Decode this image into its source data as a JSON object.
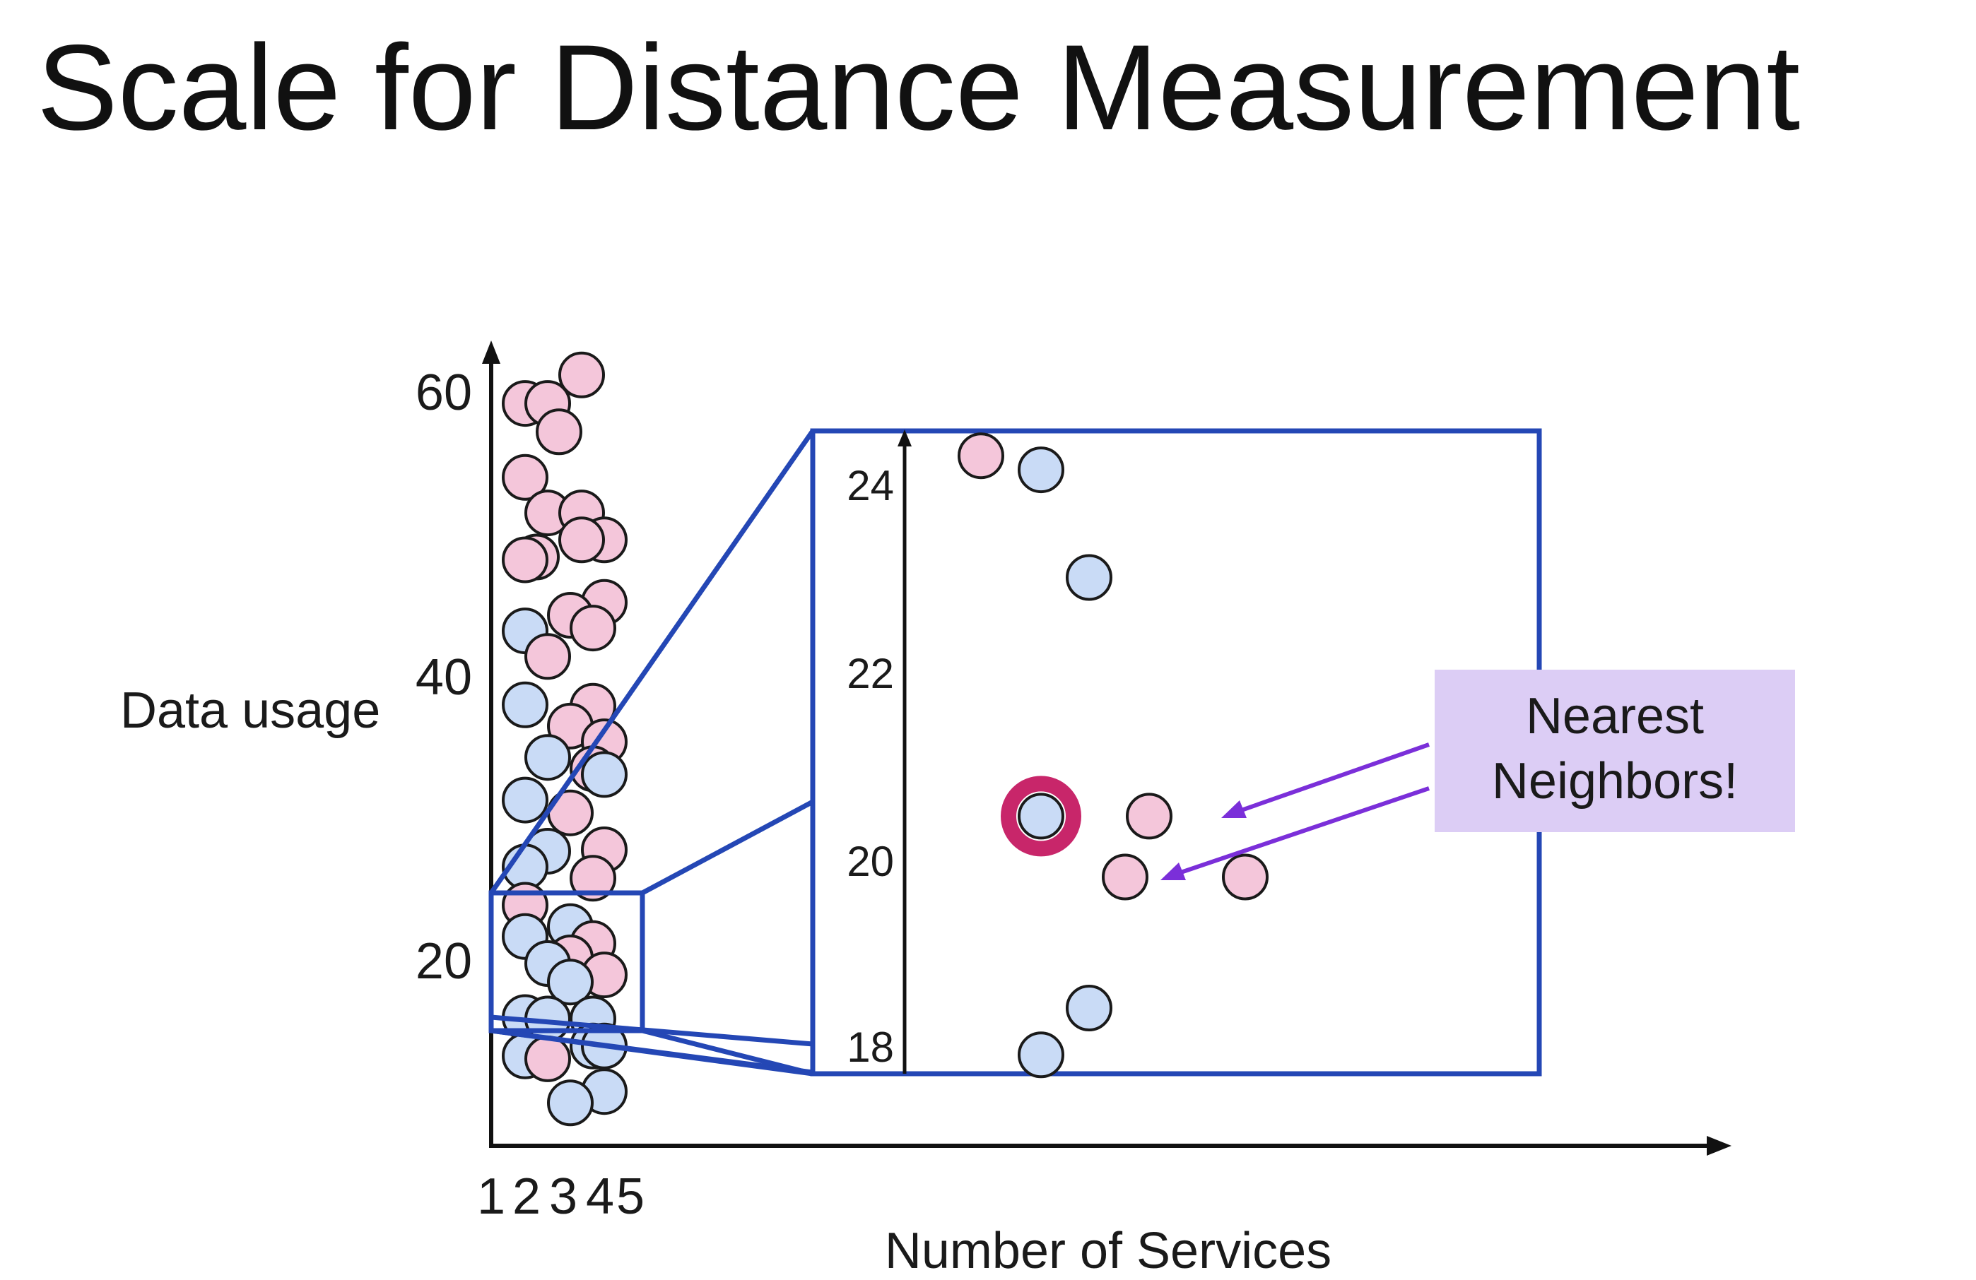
{
  "title": "Scale for Distance Measurement",
  "xlabel": "Number of Services",
  "ylabel": "Data usage",
  "callout": {
    "line1": "Nearest",
    "line2": "Neighbors!"
  },
  "colors": {
    "pink": "#f4c6da",
    "blue": "#c9dbf6",
    "frame": "#2447b5",
    "callout_bg": "#dccdf5",
    "arrow": "#7b2fd9",
    "query_ring": "#c8266a"
  },
  "chart_data": {
    "type": "scatter",
    "main": {
      "x_ticks": [
        "1",
        "2",
        "3",
        "4",
        "5"
      ],
      "y_ticks": [
        "20",
        "40",
        "60"
      ],
      "xlim": [
        0.5,
        28
      ],
      "ylim": [
        7.5,
        61.2
      ],
      "zoom_window": {
        "y": [
          16.5,
          25
        ]
      },
      "points": [
        {
          "x": 5.0,
          "y": 61.2,
          "c": "pink"
        },
        {
          "x": 2.5,
          "y": 59.2,
          "c": "pink"
        },
        {
          "x": 3.5,
          "y": 59.2,
          "c": "pink"
        },
        {
          "x": 4.0,
          "y": 57.2,
          "c": "pink"
        },
        {
          "x": 2.5,
          "y": 54.0,
          "c": "pink"
        },
        {
          "x": 3.5,
          "y": 51.5,
          "c": "pink"
        },
        {
          "x": 5.0,
          "y": 51.5,
          "c": "pink"
        },
        {
          "x": 6.0,
          "y": 49.6,
          "c": "pink"
        },
        {
          "x": 3.0,
          "y": 48.4,
          "c": "pink"
        },
        {
          "x": 2.5,
          "y": 48.2,
          "c": "pink"
        },
        {
          "x": 5.0,
          "y": 49.6,
          "c": "pink"
        },
        {
          "x": 6.0,
          "y": 45.2,
          "c": "pink"
        },
        {
          "x": 4.5,
          "y": 44.3,
          "c": "pink"
        },
        {
          "x": 5.5,
          "y": 43.4,
          "c": "pink"
        },
        {
          "x": 2.5,
          "y": 43.2,
          "c": "blue"
        },
        {
          "x": 3.5,
          "y": 41.4,
          "c": "pink"
        },
        {
          "x": 2.5,
          "y": 38.0,
          "c": "blue"
        },
        {
          "x": 5.5,
          "y": 37.9,
          "c": "pink"
        },
        {
          "x": 4.5,
          "y": 36.5,
          "c": "pink"
        },
        {
          "x": 6.0,
          "y": 35.4,
          "c": "pink"
        },
        {
          "x": 3.5,
          "y": 34.3,
          "c": "blue"
        },
        {
          "x": 5.5,
          "y": 33.5,
          "c": "pink"
        },
        {
          "x": 6.0,
          "y": 33.1,
          "c": "blue"
        },
        {
          "x": 2.5,
          "y": 31.3,
          "c": "blue"
        },
        {
          "x": 4.5,
          "y": 30.4,
          "c": "pink"
        },
        {
          "x": 6.0,
          "y": 27.8,
          "c": "pink"
        },
        {
          "x": 3.5,
          "y": 27.7,
          "c": "blue"
        },
        {
          "x": 2.5,
          "y": 26.6,
          "c": "blue"
        },
        {
          "x": 5.5,
          "y": 25.8,
          "c": "pink"
        },
        {
          "x": 2.5,
          "y": 23.9,
          "c": "pink"
        },
        {
          "x": 4.5,
          "y": 22.4,
          "c": "blue"
        },
        {
          "x": 2.5,
          "y": 21.7,
          "c": "blue"
        },
        {
          "x": 5.5,
          "y": 21.2,
          "c": "pink"
        },
        {
          "x": 4.5,
          "y": 20.2,
          "c": "pink"
        },
        {
          "x": 3.5,
          "y": 19.8,
          "c": "blue"
        },
        {
          "x": 6.0,
          "y": 19.0,
          "c": "pink"
        },
        {
          "x": 4.5,
          "y": 18.5,
          "c": "blue"
        },
        {
          "x": 2.5,
          "y": 16.0,
          "c": "blue"
        },
        {
          "x": 3.5,
          "y": 15.9,
          "c": "blue"
        },
        {
          "x": 5.5,
          "y": 15.9,
          "c": "blue"
        },
        {
          "x": 5.5,
          "y": 14.0,
          "c": "blue"
        },
        {
          "x": 6.0,
          "y": 14.0,
          "c": "blue"
        },
        {
          "x": 2.5,
          "y": 13.3,
          "c": "blue"
        },
        {
          "x": 3.5,
          "y": 13.1,
          "c": "pink"
        },
        {
          "x": 6.0,
          "y": 10.8,
          "c": "blue"
        },
        {
          "x": 4.5,
          "y": 10.0,
          "c": "blue"
        }
      ]
    },
    "zoom": {
      "y_ticks": [
        "18",
        "20",
        "22",
        "24"
      ],
      "ylim": [
        17.75,
        24.0
      ],
      "points": [
        {
          "x": 1.5,
          "y": 24.3,
          "c": "pink"
        },
        {
          "x": 2.5,
          "y": 24.15,
          "c": "blue"
        },
        {
          "x": 3.3,
          "y": 23.0,
          "c": "blue"
        },
        {
          "x": 2.5,
          "y": 20.45,
          "c": "blue",
          "query": true
        },
        {
          "x": 4.3,
          "y": 20.45,
          "c": "pink"
        },
        {
          "x": 3.9,
          "y": 19.8,
          "c": "pink"
        },
        {
          "x": 5.9,
          "y": 19.8,
          "c": "pink"
        },
        {
          "x": 3.3,
          "y": 18.4,
          "c": "blue"
        },
        {
          "x": 2.5,
          "y": 17.9,
          "c": "blue"
        }
      ]
    }
  }
}
